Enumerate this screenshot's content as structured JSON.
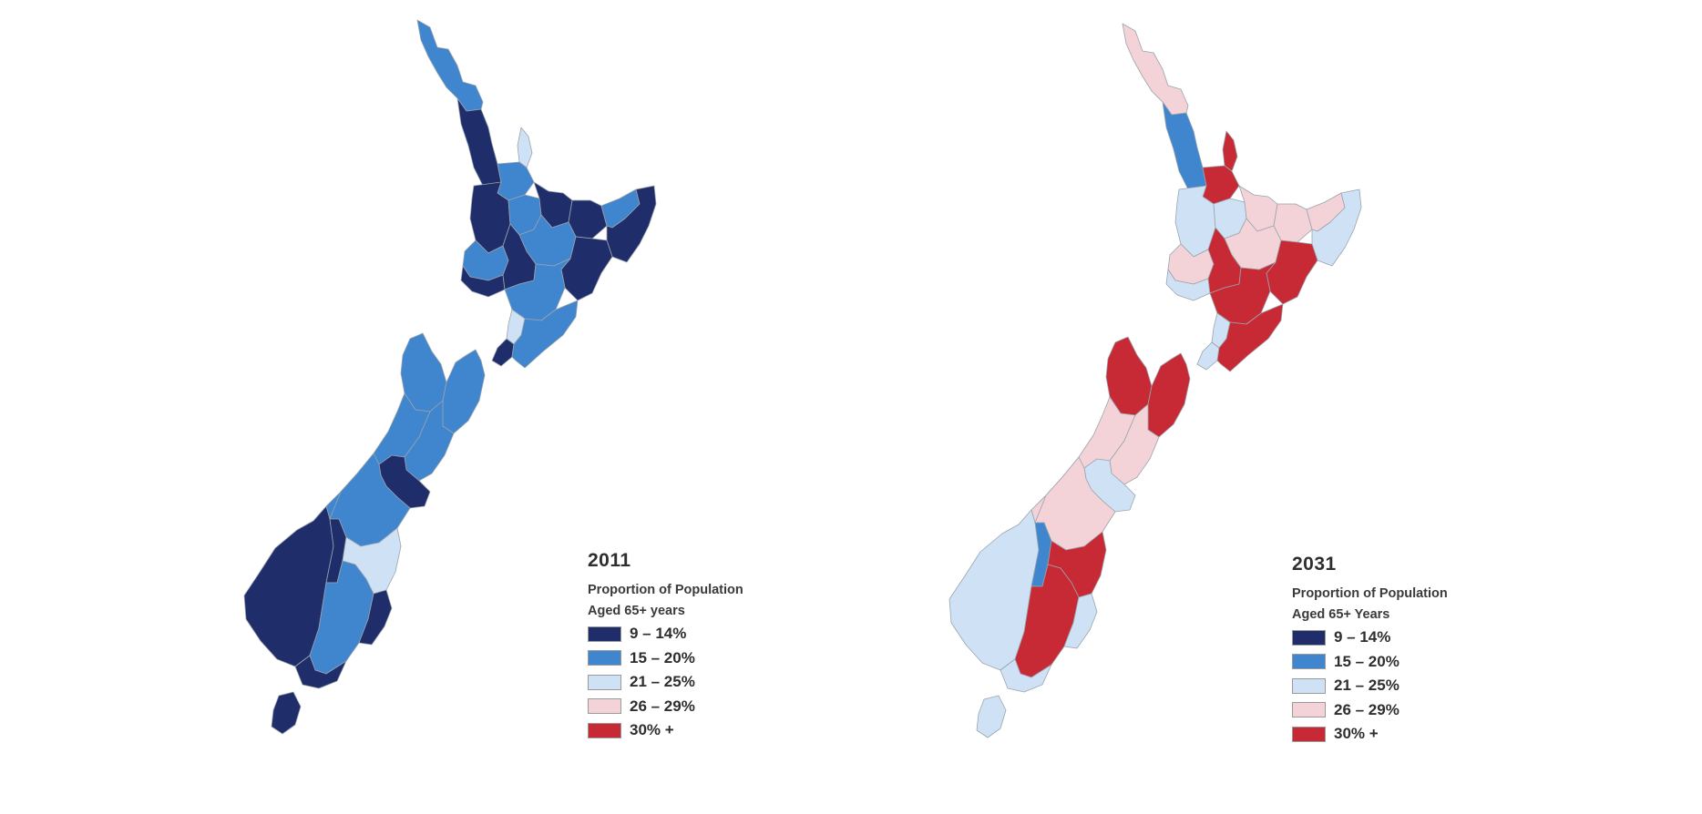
{
  "palette": {
    "c1": "#1f2d6b",
    "c2": "#3f86cf",
    "c3": "#cfe2f5",
    "c4": "#f3d3d8",
    "c5": "#c82a35"
  },
  "legend_categories": [
    {
      "key": "c1",
      "label": "9 – 14%",
      "color": "#1f2d6b"
    },
    {
      "key": "c2",
      "label": "15 – 20%",
      "color": "#3f86cf"
    },
    {
      "key": "c3",
      "label": "21 – 25%",
      "color": "#cfe2f5"
    },
    {
      "key": "c4",
      "label": "26 – 29%",
      "color": "#f3d3d8"
    },
    {
      "key": "c5",
      "label": "30% +",
      "color": "#c82a35"
    }
  ],
  "maps": [
    {
      "id": "map-2011",
      "year": "2011",
      "subtitle_line1": "Proportion of Population",
      "subtitle_line2": "Aged 65+ years",
      "legend": [
        "9 – 14%",
        "15 – 20%",
        "21 – 25%",
        "26 – 29%",
        "30% +"
      ],
      "regions": {
        "northland": "c2",
        "auckland_west": "c1",
        "coromandel": "c3",
        "hauraki": "c2",
        "waikato_west": "c1",
        "waikato_central": "c2",
        "bay_of_plenty": "c1",
        "bop_east": "c1",
        "east_cape_north": "c2",
        "gisborne": "c1",
        "taupo": "c2",
        "taranaki": "c2",
        "taranaki_south": "c1",
        "ruapehu": "c1",
        "hawkes_bay": "c1",
        "manawatu": "c2",
        "kapiti": "c3",
        "wellington": "c1",
        "wairarapa": "c2",
        "nelson_tasman": "c2",
        "marlborough": "c2",
        "west_coast": "c2",
        "canterbury_north": "c2",
        "christchurch": "c1",
        "canterbury_mid": "c2",
        "fiordland": "c1",
        "queenstown_lakes": "c1",
        "waitaki": "c3",
        "central_otago": "c2",
        "dunedin": "c1",
        "southland_east": "c1",
        "stewart_island": "c1"
      }
    },
    {
      "id": "map-2031",
      "year": "2031",
      "subtitle_line1": "Proportion of Population",
      "subtitle_line2": "Aged 65+ Years",
      "legend": [
        "9 – 14%",
        "15 – 20%",
        "21 – 25%",
        "26 – 29%",
        "30% +"
      ],
      "regions": {
        "northland": "c4",
        "auckland_west": "c2",
        "coromandel": "c5",
        "hauraki": "c5",
        "waikato_west": "c3",
        "waikato_central": "c3",
        "bay_of_plenty": "c4",
        "bop_east": "c4",
        "east_cape_north": "c4",
        "gisborne": "c3",
        "taupo": "c4",
        "taranaki": "c4",
        "taranaki_south": "c3",
        "ruapehu": "c5",
        "hawkes_bay": "c5",
        "manawatu": "c5",
        "kapiti": "c3",
        "wellington": "c3",
        "wairarapa": "c5",
        "nelson_tasman": "c5",
        "marlborough": "c5",
        "west_coast": "c4",
        "canterbury_north": "c4",
        "christchurch": "c3",
        "canterbury_mid": "c4",
        "fiordland": "c3",
        "queenstown_lakes": "c2",
        "waitaki": "c5",
        "central_otago": "c5",
        "dunedin": "c3",
        "southland_east": "c3",
        "stewart_island": "c3"
      }
    }
  ],
  "chart_data": [
    {
      "type": "choropleth",
      "title": "2011",
      "subtitle": "Proportion of Population Aged 65+ years",
      "legend": [
        "9 – 14%",
        "15 – 20%",
        "21 – 25%",
        "26 – 29%",
        "30% +"
      ],
      "legend_colors": [
        "#1f2d6b",
        "#3f86cf",
        "#cfe2f5",
        "#f3d3d8",
        "#c82a35"
      ],
      "summary": "Mostly 9–14% and 15–20%; a few 21–25% areas (Thames-Coromandel, Kapiti, Waitaki); no 26%+ areas."
    },
    {
      "type": "choropleth",
      "title": "2031",
      "subtitle": "Proportion of Population Aged 65+ Years",
      "legend": [
        "9 – 14%",
        "15 – 20%",
        "21 – 25%",
        "26 – 29%",
        "30% +"
      ],
      "legend_colors": [
        "#1f2d6b",
        "#3f86cf",
        "#cfe2f5",
        "#f3d3d8",
        "#c82a35"
      ],
      "summary": "Mostly 21–25%, 26–29% and 30%+; 15–20% only in Auckland, Queenstown-Lakes and Wellington fringe; no 9–14% areas."
    }
  ]
}
